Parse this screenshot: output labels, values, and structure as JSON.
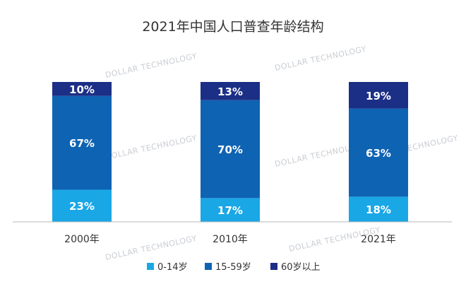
{
  "chart_data": {
    "type": "bar",
    "stacked": true,
    "title": "2021年中国人口普查年龄结构",
    "categories": [
      "2000年",
      "2010年",
      "2021年"
    ],
    "series": [
      {
        "name": "0-14岁",
        "values": [
          23,
          17,
          18
        ],
        "labels": [
          "23%",
          "17%",
          "18%"
        ],
        "color": "#1aa7e6"
      },
      {
        "name": "15-59岁",
        "values": [
          67,
          70,
          63
        ],
        "labels": [
          "67%",
          "70%",
          "63%"
        ],
        "color": "#0f63b3"
      },
      {
        "name": "60岁以上",
        "values": [
          10,
          13,
          19
        ],
        "labels": [
          "10%",
          "13%",
          "19%"
        ],
        "color": "#1c2f86"
      }
    ],
    "ylim": [
      0,
      100
    ],
    "grid": false,
    "legend": "bottom"
  },
  "watermark": "DOLLAR TECHNOLOGY"
}
